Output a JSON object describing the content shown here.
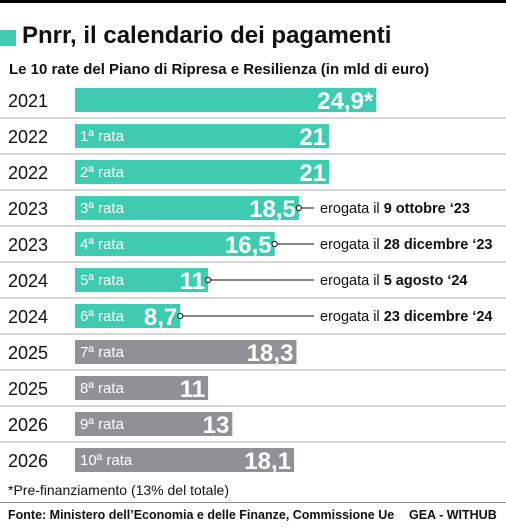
{
  "header": {
    "title": "Pnrr, il calendario dei pagamenti",
    "subtitle": "Le 10 rate del Piano di Ripresa e Resilienza (in mld di euro)"
  },
  "footer": {
    "footnote": "*Pre-finanziamento (13% del totale)",
    "source": "Fonte: Ministero dell’Economia e delle Finanze, Commissione Ue",
    "credit": "GEA - WITHUB"
  },
  "colors": {
    "teal": "#3fcbb0",
    "gray": "#8e9294",
    "separator": "#a8a8a8",
    "connector": "#111111"
  },
  "chart_data": {
    "type": "bar",
    "orientation": "horizontal",
    "title": "Pnrr, il calendario dei pagamenti",
    "subtitle": "Le 10 rate del Piano di Ripresa e Resilienza (in mld di euro)",
    "xlim": [
      0,
      25
    ],
    "grid": false,
    "rows": [
      {
        "year": "2021",
        "rate": "",
        "value": 24.9,
        "value_label": "24,9*",
        "status": "paid",
        "note_prefix": "",
        "note_date": ""
      },
      {
        "year": "2022",
        "rate": "1ª rata",
        "value": 21,
        "value_label": "21",
        "status": "paid",
        "note_prefix": "",
        "note_date": ""
      },
      {
        "year": "2022",
        "rate": "2ª rata",
        "value": 21,
        "value_label": "21",
        "status": "paid",
        "note_prefix": "",
        "note_date": ""
      },
      {
        "year": "2023",
        "rate": "3ª rata",
        "value": 18.5,
        "value_label": "18,5",
        "status": "paid",
        "note_prefix": "erogata il ",
        "note_date": "9 ottobre ‘23"
      },
      {
        "year": "2023",
        "rate": "4ª rata",
        "value": 16.5,
        "value_label": "16,5",
        "status": "paid",
        "note_prefix": "erogata il ",
        "note_date": "28 dicembre ‘23"
      },
      {
        "year": "2024",
        "rate": "5ª rata",
        "value": 11,
        "value_label": "11",
        "status": "paid",
        "note_prefix": "erogata il ",
        "note_date": "5 agosto ‘24"
      },
      {
        "year": "2024",
        "rate": "6ª rata",
        "value": 8.7,
        "value_label": "8,7",
        "status": "paid",
        "note_prefix": "erogata il ",
        "note_date": "23 dicembre ‘24"
      },
      {
        "year": "2025",
        "rate": "7ª rata",
        "value": 18.3,
        "value_label": "18,3",
        "status": "pending",
        "note_prefix": "",
        "note_date": ""
      },
      {
        "year": "2025",
        "rate": "8ª rata",
        "value": 11,
        "value_label": "11",
        "status": "pending",
        "note_prefix": "",
        "note_date": ""
      },
      {
        "year": "2026",
        "rate": "9ª rata",
        "value": 13,
        "value_label": "13",
        "status": "pending",
        "note_prefix": "",
        "note_date": ""
      },
      {
        "year": "2026",
        "rate": "10ª rata",
        "value": 18.1,
        "value_label": "18,1",
        "status": "pending",
        "note_prefix": "",
        "note_date": ""
      }
    ]
  }
}
